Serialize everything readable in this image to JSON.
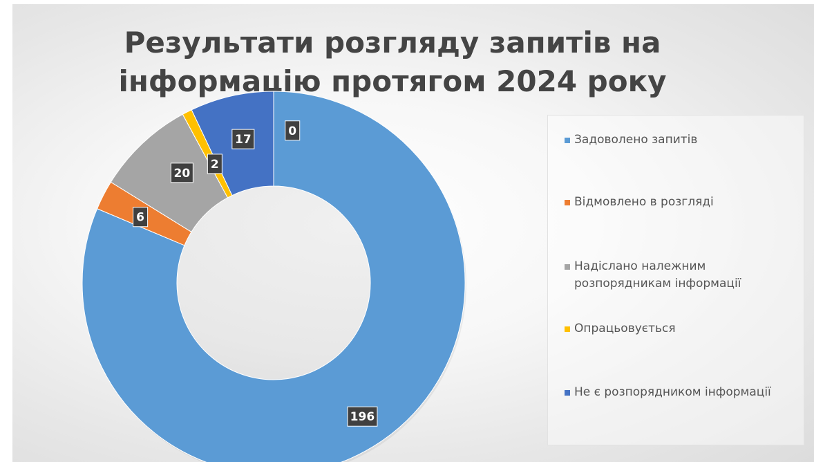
{
  "chart_data": {
    "type": "pie",
    "style": "doughnut",
    "title_line1": "Результати розгляду запитів на",
    "title_line2": "інформацію протягом  2024 року",
    "categories": [
      "Задоволено запитів",
      "Відмовлено в розгляді",
      "Надіслано належним розпорядникам інформації",
      "Опрацьовується",
      "Не є розпорядником інформації"
    ],
    "values": [
      196,
      6,
      20,
      2,
      17
    ],
    "extra_label": "0",
    "colors": [
      "#5b9bd5",
      "#ed7d31",
      "#a5a5a5",
      "#ffc000",
      "#4472c4"
    ],
    "legend_position": "right",
    "data_labels": true
  }
}
